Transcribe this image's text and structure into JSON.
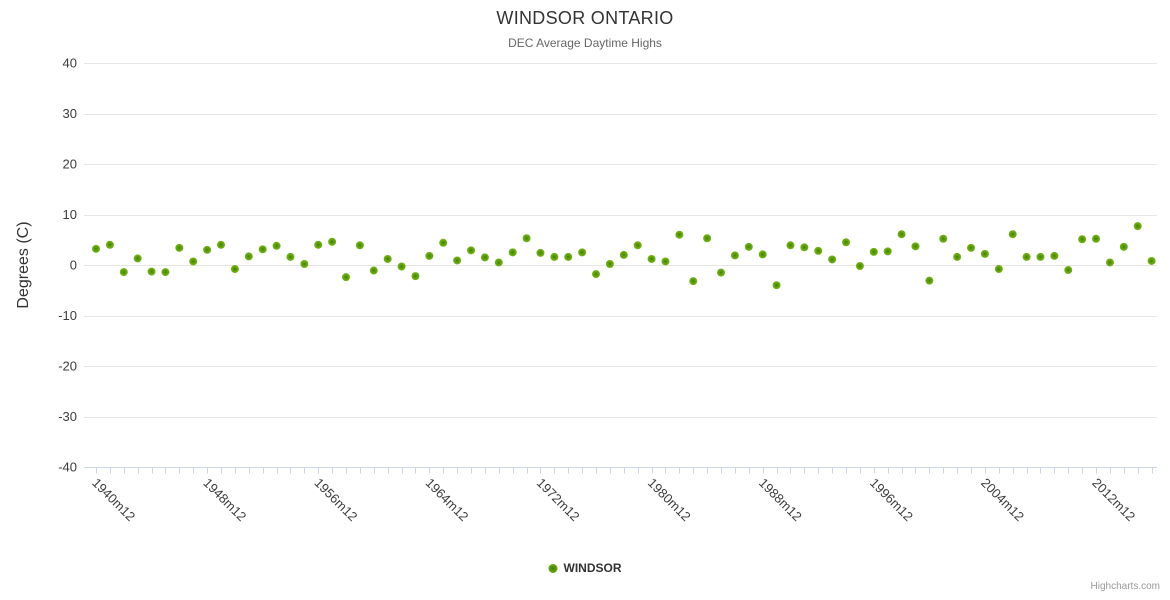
{
  "chart_data": {
    "type": "scatter",
    "title": "WINDSOR ONTARIO",
    "subtitle": "DEC Average Daytime Highs",
    "xlabel": "",
    "ylabel": "Degrees (C)",
    "ylim": [
      -40,
      40
    ],
    "y_tick_interval": 10,
    "x_label_step": 8,
    "grid": "horizontal",
    "legend_position": "bottom-center",
    "x": [
      "1940m12",
      "1941m12",
      "1942m12",
      "1943m12",
      "1944m12",
      "1945m12",
      "1946m12",
      "1947m12",
      "1948m12",
      "1949m12",
      "1950m12",
      "1951m12",
      "1952m12",
      "1953m12",
      "1954m12",
      "1955m12",
      "1956m12",
      "1957m12",
      "1958m12",
      "1959m12",
      "1960m12",
      "1961m12",
      "1962m12",
      "1963m12",
      "1964m12",
      "1965m12",
      "1966m12",
      "1967m12",
      "1968m12",
      "1969m12",
      "1970m12",
      "1971m12",
      "1972m12",
      "1973m12",
      "1974m12",
      "1975m12",
      "1976m12",
      "1977m12",
      "1978m12",
      "1979m12",
      "1980m12",
      "1981m12",
      "1982m12",
      "1983m12",
      "1984m12",
      "1985m12",
      "1986m12",
      "1987m12",
      "1988m12",
      "1989m12",
      "1990m12",
      "1991m12",
      "1992m12",
      "1993m12",
      "1994m12",
      "1995m12",
      "1996m12",
      "1997m12",
      "1998m12",
      "1999m12",
      "2000m12",
      "2001m12",
      "2002m12",
      "2003m12",
      "2004m12",
      "2005m12",
      "2006m12",
      "2007m12",
      "2008m12",
      "2009m12",
      "2010m12",
      "2011m12",
      "2012m12",
      "2013m12",
      "2014m12",
      "2015m12",
      "2016m12"
    ],
    "series": [
      {
        "name": "WINDSOR",
        "color": "#61A20A",
        "values": [
          3.2,
          4.0,
          -1.4,
          1.3,
          -1.3,
          -1.4,
          3.4,
          0.7,
          3.0,
          4.0,
          -0.8,
          1.7,
          3.1,
          3.8,
          1.6,
          0.2,
          4.0,
          4.6,
          -2.4,
          3.9,
          -1.1,
          1.2,
          -0.3,
          -2.2,
          1.8,
          4.4,
          0.9,
          2.9,
          1.5,
          0.5,
          2.5,
          5.3,
          2.4,
          1.6,
          1.6,
          2.5,
          -1.8,
          0.2,
          2.0,
          3.9,
          1.2,
          0.7,
          6.0,
          -3.2,
          5.3,
          -1.5,
          1.9,
          3.6,
          2.1,
          -4.0,
          3.9,
          3.5,
          2.8,
          1.1,
          4.5,
          -0.2,
          2.6,
          2.7,
          6.1,
          3.7,
          -3.1,
          5.2,
          1.6,
          3.4,
          2.2,
          -0.8,
          6.1,
          1.6,
          1.6,
          1.8,
          -1.0,
          5.1,
          5.2,
          0.5,
          3.6,
          7.7,
          0.8
        ]
      }
    ]
  },
  "legend": {
    "label": "WINDSOR"
  },
  "credits": {
    "label": "Highcharts.com"
  },
  "colors": {
    "background": "#FFFFFF",
    "series": "#61A20A",
    "grid": "#E6E6E6",
    "axis": "#CCD6EB",
    "title": "#333333",
    "subtitle": "#666666",
    "tick_label": "#3C3C3C",
    "credits": "#999999"
  }
}
